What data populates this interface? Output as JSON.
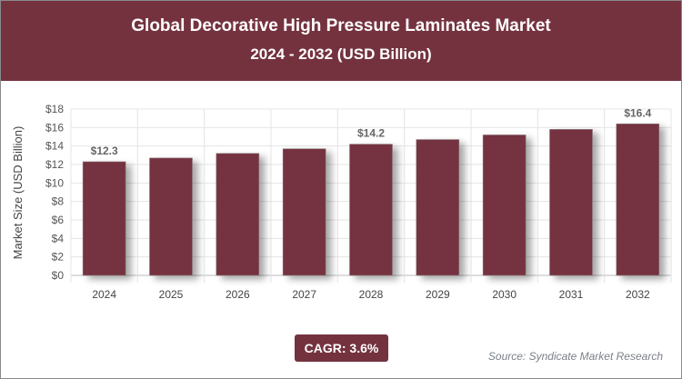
{
  "header": {
    "title": "Global Decorative High Pressure Laminates Market",
    "subtitle": "2024 - 2032 (USD Billion)"
  },
  "chart_data": {
    "type": "bar",
    "categories": [
      "2024",
      "2025",
      "2026",
      "2027",
      "2028",
      "2029",
      "2030",
      "2031",
      "2032"
    ],
    "values": [
      12.3,
      12.7,
      13.2,
      13.7,
      14.2,
      14.7,
      15.2,
      15.8,
      16.4
    ],
    "data_labels": {
      "0": "$12.3",
      "4": "$14.2",
      "8": "$16.4"
    },
    "ylabel": "Market Size (USD Billion)",
    "ylim": [
      0,
      18
    ],
    "yticks": [
      "$0",
      "$2",
      "$4",
      "$6",
      "$8",
      "$10",
      "$12",
      "$14",
      "$16",
      "$18"
    ],
    "grid": true,
    "bar_color": "#74323f"
  },
  "footer": {
    "cagr": "CAGR: 3.6%",
    "source": "Source: Syndicate Market Research"
  }
}
